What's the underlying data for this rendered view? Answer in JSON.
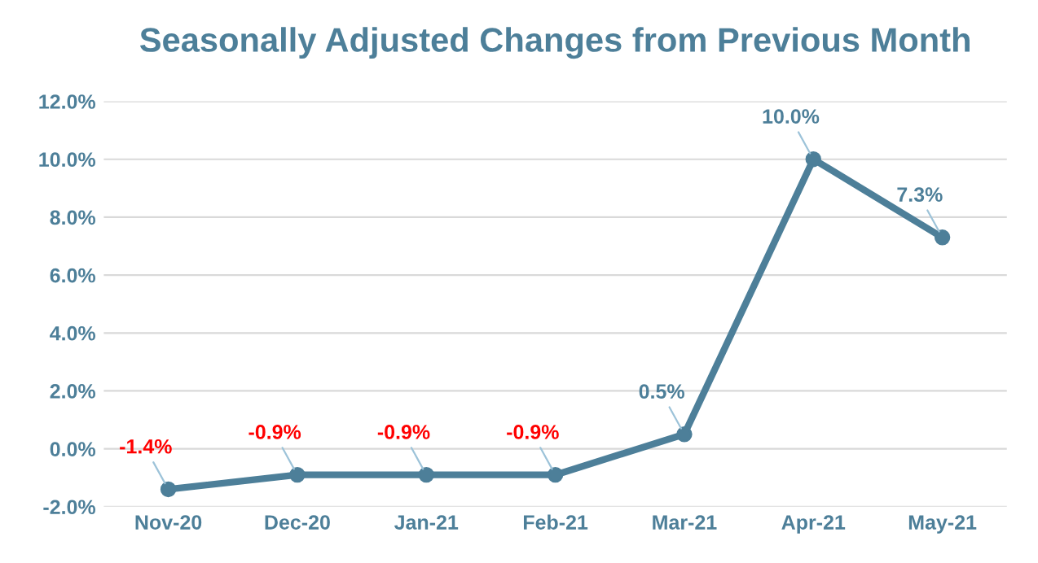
{
  "chart_data": {
    "type": "line",
    "title": "Seasonally Adjusted Changes from Previous Month",
    "categories": [
      "Nov-20",
      "Dec-20",
      "Jan-21",
      "Feb-21",
      "Mar-21",
      "Apr-21",
      "May-21"
    ],
    "series": [
      {
        "color": "#4d7f99",
        "values": [
          -1.4,
          -0.9,
          -0.9,
          -0.9,
          0.5,
          10.0,
          7.3
        ],
        "value_labels": [
          "-1.4%",
          "-0.9%",
          "-0.9%",
          "-0.9%",
          "0.5%",
          "10.0%",
          "7.3%"
        ]
      }
    ],
    "ylim": [
      -2,
      12
    ],
    "yticks": [
      {
        "value": -2,
        "label": "-2.0%"
      },
      {
        "value": 0,
        "label": "0.0%"
      },
      {
        "value": 2,
        "label": "2.0%"
      },
      {
        "value": 4,
        "label": "4.0%"
      },
      {
        "value": 6,
        "label": "6.0%"
      },
      {
        "value": 8,
        "label": "8.0%"
      },
      {
        "value": 10,
        "label": "10.0%"
      },
      {
        "value": 12,
        "label": "12.0%"
      }
    ],
    "grid": "y",
    "marker": "circle",
    "line_style": "solid",
    "legend": false
  }
}
